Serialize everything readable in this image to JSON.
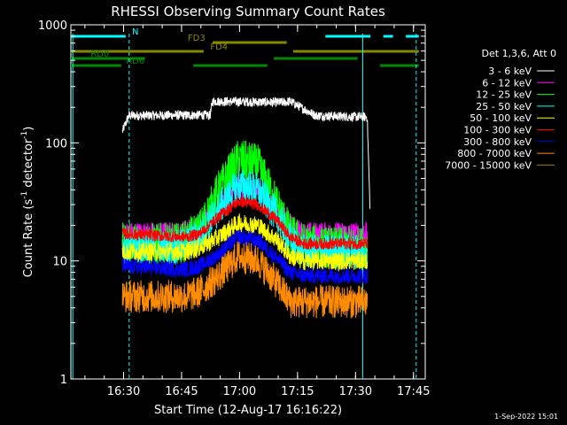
{
  "chart_data": {
    "type": "line",
    "title": "RHESSI Observing Summary Count Rates",
    "xlabel": "Start Time (12-Aug-17 16:16:22)",
    "ylabel_main": "Count Rate (s",
    "ylabel_sup1": "-1",
    "ylabel_mid": " detector",
    "ylabel_sup2": "-1",
    "ylabel_end": ")",
    "yscale": "log",
    "ylim": [
      1,
      1000
    ],
    "xlim": [
      0,
      5500
    ],
    "x_unit": "seconds from 16:16:22",
    "x_ticks": [
      {
        "t": 818,
        "label": "16:30"
      },
      {
        "t": 1718,
        "label": "16:45"
      },
      {
        "t": 2618,
        "label": "17:00"
      },
      {
        "t": 3518,
        "label": "17:15"
      },
      {
        "t": 4418,
        "label": "17:30"
      },
      {
        "t": 5318,
        "label": "17:45"
      }
    ],
    "y_ticks": [
      {
        "v": 1,
        "label": "1"
      },
      {
        "v": 10,
        "label": "10"
      },
      {
        "v": 100,
        "label": "100"
      },
      {
        "v": 1000,
        "label": "1000"
      }
    ],
    "legend_title": "Det 1,3,6, Att 0",
    "legend_position": "right",
    "timestamp": "1-Sep-2022 15:01",
    "series": [
      {
        "name": "3 - 6 keV",
        "color": "#ffffff",
        "x": [
          800,
          900,
          2100,
          2160,
          2200,
          3300,
          3400,
          3800,
          3850,
          4600,
          4640
        ],
        "y": [
          125,
          170,
          172,
          170,
          225,
          220,
          225,
          170,
          170,
          165,
          30
        ],
        "noise": 0.04
      },
      {
        "name": "6 - 12 keV",
        "color": "#ff00ff",
        "x": [
          800,
          1700,
          1800,
          2000,
          2300,
          2600,
          2900,
          3200,
          3400,
          3600,
          4000,
          4600
        ],
        "y": [
          17,
          17,
          18,
          20,
          28,
          42,
          40,
          28,
          20,
          17,
          17,
          17
        ],
        "noise": 0.1
      },
      {
        "name": "12 - 25 keV",
        "color": "#00ff00",
        "x": [
          800,
          1700,
          1800,
          2000,
          2300,
          2600,
          2900,
          3200,
          3400,
          3600,
          4000,
          4600
        ],
        "y": [
          14,
          14,
          15,
          18,
          40,
          72,
          65,
          30,
          17,
          14,
          13,
          13
        ],
        "noise": 0.18
      },
      {
        "name": "25 - 50 keV",
        "color": "#00ffff",
        "x": [
          800,
          1700,
          1800,
          2000,
          2300,
          2600,
          2900,
          3200,
          3400,
          3600,
          4000,
          4600
        ],
        "y": [
          13,
          13,
          14,
          16,
          28,
          44,
          40,
          24,
          15,
          12,
          12,
          12
        ],
        "noise": 0.15
      },
      {
        "name": "50 - 100 keV",
        "color": "#ffff00",
        "x": [
          800,
          1700,
          1800,
          2000,
          2300,
          2600,
          2900,
          3200,
          3400,
          3600,
          4000,
          4600
        ],
        "y": [
          12,
          12,
          12,
          13,
          16,
          21,
          20,
          15,
          11,
          10,
          10,
          10
        ],
        "noise": 0.08
      },
      {
        "name": "100 - 300 keV",
        "color": "#ff0000",
        "x": [
          800,
          1700,
          1800,
          2000,
          2300,
          2600,
          2900,
          3200,
          3400,
          3600,
          4000,
          4600
        ],
        "y": [
          17,
          16,
          16,
          17,
          24,
          32,
          30,
          22,
          16,
          14,
          14,
          14
        ],
        "noise": 0.05
      },
      {
        "name": "300 - 800 keV",
        "color": "#0000ff",
        "x": [
          800,
          1700,
          1800,
          2000,
          2300,
          2600,
          2900,
          3200,
          3400,
          3600,
          4000,
          4600
        ],
        "y": [
          9,
          8.5,
          8.5,
          9,
          11.5,
          16,
          15,
          10.5,
          8,
          7.5,
          7.5,
          7.5
        ],
        "noise": 0.07
      },
      {
        "name": "800 - 7000 keV",
        "color": "#ff8c00",
        "x": [
          800,
          1700,
          1800,
          2000,
          2300,
          2600,
          2900,
          3200,
          3400,
          3600,
          4000,
          4600
        ],
        "y": [
          5,
          5,
          5,
          5.5,
          7.5,
          11,
          10,
          6.5,
          4.5,
          4.5,
          4.5,
          4.5
        ],
        "noise": 0.14
      },
      {
        "name": "7000 - 15000 keV",
        "color": "#aa7700",
        "x": [],
        "y": [],
        "noise": 0
      }
    ],
    "state_bars": [
      {
        "label": "N",
        "color": "#00ffff",
        "label_t": 1000,
        "segments": [
          [
            0,
            850
          ],
          [
            3950,
            4650
          ],
          [
            4850,
            5000
          ],
          [
            5200,
            5400
          ]
        ]
      },
      {
        "label": "FD3",
        "color": "#888800",
        "label_t": 1950,
        "segments": [
          [
            2200,
            3350
          ]
        ]
      },
      {
        "label": "FD4",
        "color": "#888800",
        "label_t": 2300,
        "segments": [
          [
            0,
            2060
          ],
          [
            3450,
            5400
          ]
        ]
      },
      {
        "label": "RD0",
        "color": "#008800",
        "label_t": 450,
        "segments": [
          [
            0,
            1150
          ],
          [
            3150,
            4450
          ]
        ]
      },
      {
        "label": "RD6",
        "color": "#008800",
        "label_t": 1000,
        "segments": [
          [
            0,
            780
          ],
          [
            1900,
            3050
          ],
          [
            4800,
            5400
          ]
        ]
      }
    ],
    "vlines": [
      {
        "t": 30,
        "color": "#00ffff",
        "dashed": false
      },
      {
        "t": 905,
        "color": "#00ffff",
        "dashed": true
      },
      {
        "t": 4530,
        "color": "#00ffff",
        "dashed": false
      },
      {
        "t": 5360,
        "color": "#00ffff",
        "dashed": true
      }
    ]
  }
}
